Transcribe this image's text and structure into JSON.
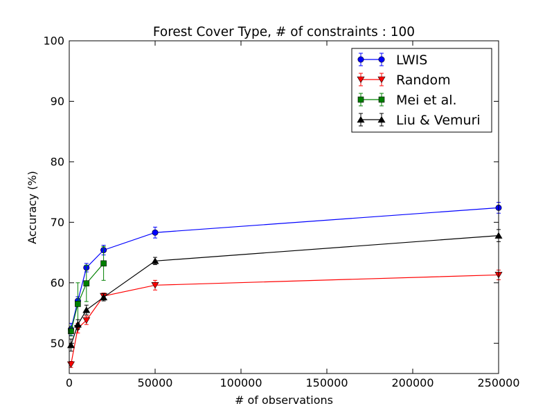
{
  "chart_data": {
    "type": "line",
    "title": "Forest Cover Type, # of constraints : 100",
    "xlabel": "# of observations",
    "ylabel": "Accuracy (%)",
    "xlim": [
      0,
      250000
    ],
    "ylim": [
      45,
      100
    ],
    "xticks": [
      0,
      50000,
      100000,
      150000,
      200000,
      250000
    ],
    "yticks": [
      50,
      60,
      70,
      80,
      90,
      100
    ],
    "grid": false,
    "legend_position": "top-right",
    "series": [
      {
        "name": "LWIS",
        "color": "#0000ff",
        "marker": "circle",
        "x": [
          1000,
          5000,
          10000,
          20000,
          50000,
          250000
        ],
        "y": [
          52.3,
          57.0,
          62.5,
          65.4,
          68.3,
          72.4
        ],
        "err": [
          1.0,
          0.7,
          0.7,
          0.8,
          0.9,
          0.9
        ]
      },
      {
        "name": "Random",
        "color": "#ff0000",
        "marker": "triangle-down",
        "x": [
          1000,
          5000,
          10000,
          20000,
          50000,
          250000
        ],
        "y": [
          46.5,
          52.5,
          53.8,
          57.8,
          59.6,
          61.3
        ],
        "err": [
          0.5,
          0.8,
          0.7,
          0.5,
          0.8,
          0.8
        ]
      },
      {
        "name": "Mei et al.",
        "color": "#008000",
        "marker": "square",
        "x": [
          1000,
          5000,
          10000,
          20000
        ],
        "y": [
          52.0,
          56.5,
          59.9,
          63.2
        ],
        "err": [
          0.8,
          3.5,
          3.0,
          2.8
        ]
      },
      {
        "name": "Liu & Vemuri",
        "color": "#000000",
        "marker": "triangle-up",
        "x": [
          1000,
          5000,
          10000,
          20000,
          50000,
          250000
        ],
        "y": [
          49.7,
          53.1,
          55.5,
          57.6,
          63.6,
          67.8
        ],
        "err": [
          1.0,
          0.8,
          0.8,
          0.6,
          0.6,
          1.0
        ]
      }
    ]
  }
}
